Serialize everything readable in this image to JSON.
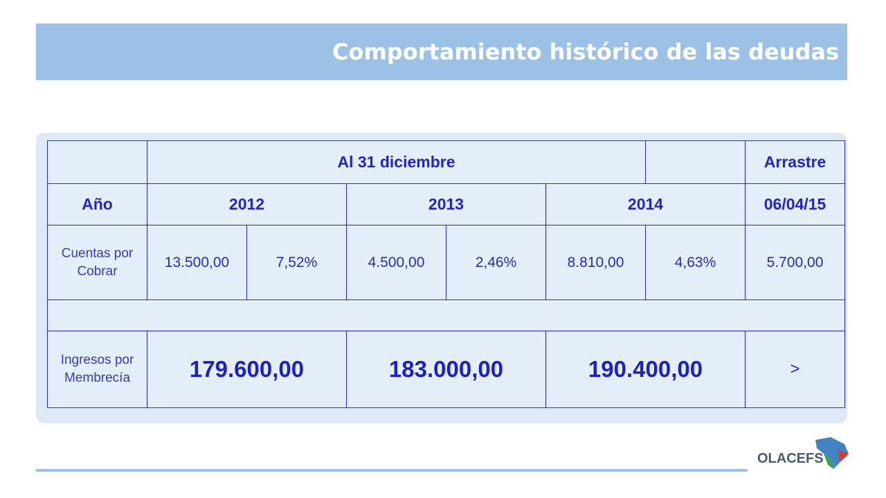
{
  "header": {
    "title": "Comportamiento histórico de las deudas"
  },
  "table": {
    "rows": [
      [
        "Al 31 diciembre",
        "Arrastre"
      ],
      [
        "Año",
        "2012",
        "2013",
        "2014",
        "06/04/15"
      ],
      [
        "Cuentas por Cobrar",
        "13.500,00",
        "7,52%",
        "4.500,00",
        "2,46%",
        "8.810,00",
        "4,63%",
        "5.700,00"
      ],
      [],
      [
        "Ingresos por Membrecía",
        "179.600,00",
        "183.000,00",
        "190.400,00",
        ">"
      ]
    ]
  },
  "logo": {
    "text": "OLACEFS"
  }
}
